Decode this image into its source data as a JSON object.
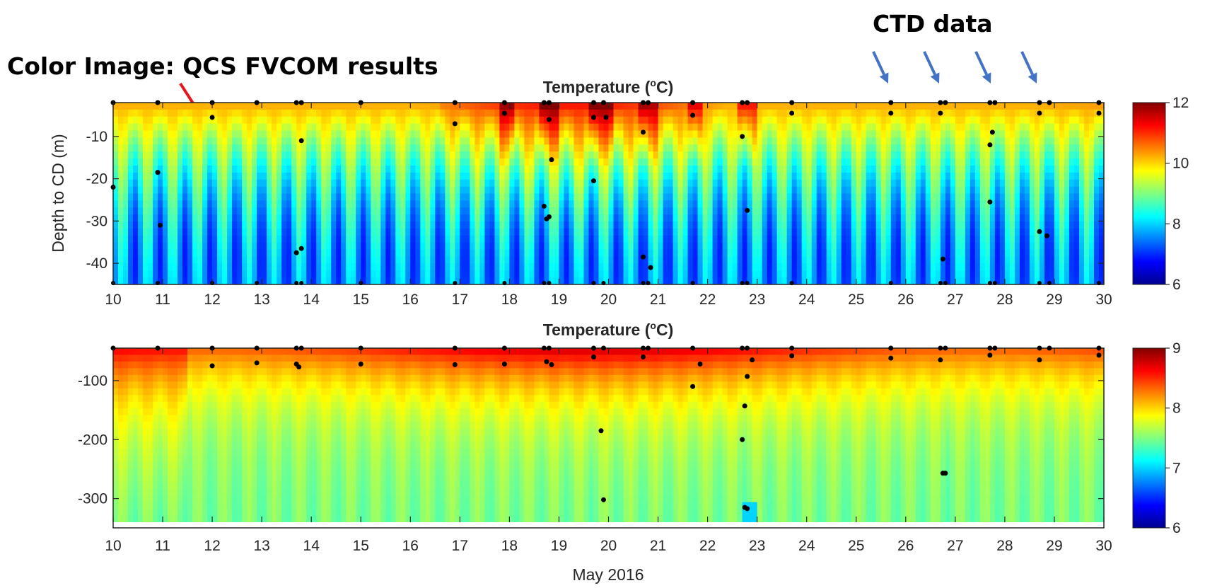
{
  "annotations": {
    "left_label": "Color Image: QCS FVCOM results",
    "right_label": "CTD data",
    "left_arrow_color": "#e8141b",
    "right_arrow_color": "#4472c4"
  },
  "chart_data": [
    {
      "type": "heatmap",
      "title": "Temperature (°C)",
      "title_parts": {
        "main": "Temperature (",
        "sup": "o",
        "unit": "C)"
      },
      "xlabel": "",
      "ylabel": "Depth to CD (m)",
      "xlim": [
        10,
        30
      ],
      "ylim": [
        -45,
        -2
      ],
      "xticks": [
        10,
        11,
        12,
        13,
        14,
        15,
        16,
        17,
        18,
        19,
        20,
        21,
        22,
        23,
        24,
        25,
        26,
        27,
        28,
        29,
        30
      ],
      "yticks": [
        -10,
        -20,
        -30,
        -40
      ],
      "colorbar": {
        "range": [
          6,
          12
        ],
        "ticks": [
          6,
          8,
          10,
          12
        ],
        "colormap": "jet"
      },
      "ctd_casts": [
        10.0,
        10.9,
        12.0,
        12.9,
        13.7,
        13.8,
        15.0,
        16.9,
        17.9,
        18.7,
        18.8,
        19.7,
        19.9,
        20.7,
        20.8,
        21.7,
        22.7,
        22.8,
        23.7,
        25.7,
        26.7,
        26.8,
        27.7,
        27.8,
        28.7,
        28.9,
        29.9
      ],
      "ctd_points": [
        [
          10.0,
          -22
        ],
        [
          10.9,
          -18.5
        ],
        [
          10.95,
          -31
        ],
        [
          12.0,
          -5.5
        ],
        [
          13.7,
          -37.5
        ],
        [
          13.8,
          -36.5
        ],
        [
          13.8,
          -11
        ],
        [
          16.9,
          -7
        ],
        [
          17.9,
          -4.5
        ],
        [
          18.7,
          -26.5
        ],
        [
          18.75,
          -29.5
        ],
        [
          18.8,
          -29
        ],
        [
          18.8,
          -6
        ],
        [
          18.85,
          -15.5
        ],
        [
          19.7,
          -20.5
        ],
        [
          19.7,
          -5.5
        ],
        [
          19.95,
          -5.5
        ],
        [
          20.7,
          -38.5
        ],
        [
          20.7,
          -9
        ],
        [
          20.85,
          -41
        ],
        [
          21.7,
          -5
        ],
        [
          22.7,
          -10
        ],
        [
          22.8,
          -27.5
        ],
        [
          23.7,
          -4.5
        ],
        [
          25.7,
          -4.5
        ],
        [
          26.7,
          -4.5
        ],
        [
          26.75,
          -39
        ],
        [
          27.7,
          -12
        ],
        [
          27.75,
          -9
        ],
        [
          27.7,
          -25.5
        ],
        [
          28.7,
          -4.5
        ],
        [
          28.7,
          -32.5
        ],
        [
          28.85,
          -33.5
        ],
        [
          29.9,
          -4.5
        ]
      ]
    },
    {
      "type": "heatmap",
      "title": "Temperature (°C)",
      "title_parts": {
        "main": "Temperature (",
        "sup": "o",
        "unit": "C)"
      },
      "xlabel": "May 2016",
      "ylabel": "",
      "xlim": [
        10,
        30
      ],
      "ylim": [
        -340,
        -45
      ],
      "xticks": [
        10,
        11,
        12,
        13,
        14,
        15,
        16,
        17,
        18,
        19,
        20,
        21,
        22,
        23,
        24,
        25,
        26,
        27,
        28,
        29,
        30
      ],
      "yticks": [
        -100,
        -200,
        -300
      ],
      "colorbar": {
        "range": [
          6,
          9
        ],
        "ticks": [
          6,
          7,
          8,
          9
        ],
        "colormap": "jet"
      },
      "ctd_casts": [
        10.0,
        10.9,
        12.0,
        12.9,
        13.7,
        13.8,
        15.0,
        16.9,
        17.9,
        18.7,
        18.8,
        19.7,
        19.9,
        20.7,
        20.8,
        21.7,
        22.7,
        22.8,
        23.7,
        25.7,
        26.7,
        26.8,
        27.7,
        27.8,
        28.7,
        28.9,
        29.9
      ],
      "ctd_points": [
        [
          12.0,
          -75
        ],
        [
          12.9,
          -70
        ],
        [
          13.7,
          -72
        ],
        [
          13.75,
          -77
        ],
        [
          15.0,
          -72
        ],
        [
          16.9,
          -73
        ],
        [
          17.9,
          -72
        ],
        [
          18.75,
          -68
        ],
        [
          18.85,
          -73
        ],
        [
          19.7,
          -60
        ],
        [
          19.85,
          -185
        ],
        [
          19.9,
          -302
        ],
        [
          20.7,
          -60
        ],
        [
          21.7,
          -110
        ],
        [
          21.85,
          -72
        ],
        [
          22.7,
          -200
        ],
        [
          22.75,
          -315
        ],
        [
          22.8,
          -317
        ],
        [
          22.75,
          -143
        ],
        [
          22.8,
          -93
        ],
        [
          22.9,
          -65
        ],
        [
          23.7,
          -58
        ],
        [
          25.7,
          -62
        ],
        [
          26.7,
          -65
        ],
        [
          26.75,
          -257
        ],
        [
          26.8,
          -257
        ],
        [
          27.7,
          -57
        ],
        [
          28.7,
          -65
        ],
        [
          29.9,
          -57
        ]
      ]
    }
  ]
}
